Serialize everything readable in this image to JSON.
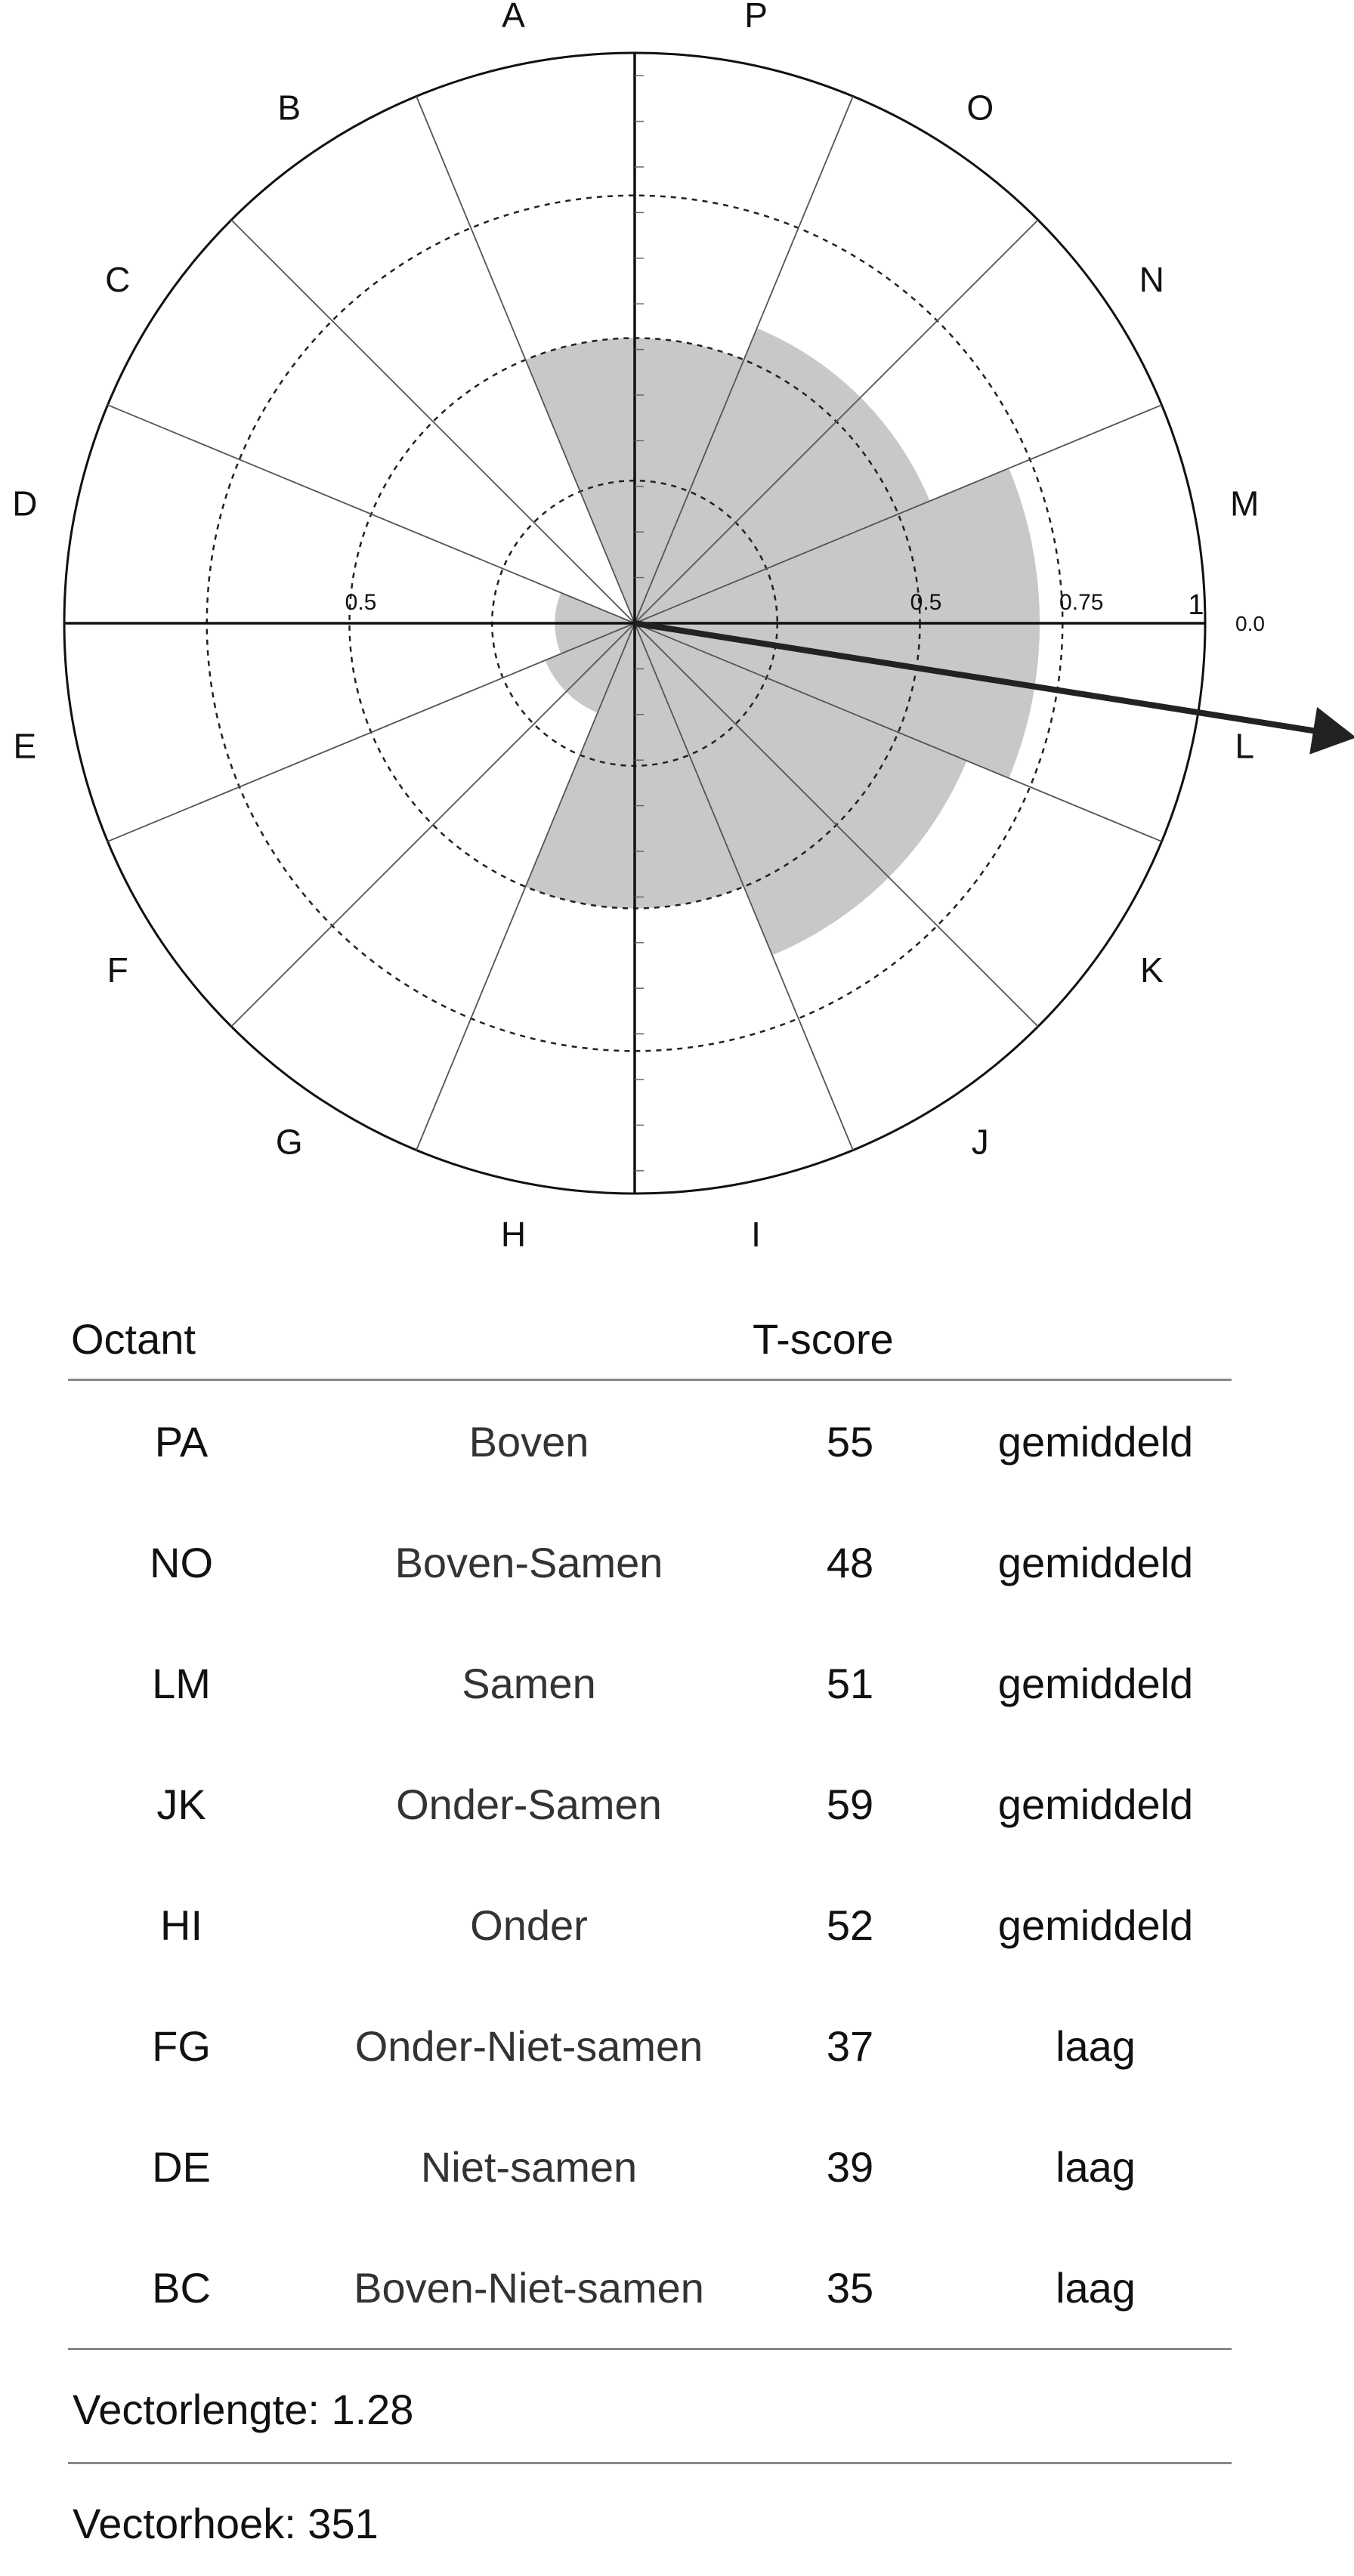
{
  "chart_data": {
    "type": "polar-area",
    "octant_letters": [
      "A",
      "B",
      "C",
      "D",
      "E",
      "F",
      "G",
      "H",
      "I",
      "J",
      "K",
      "L",
      "M",
      "N",
      "O",
      "P"
    ],
    "radial_labels": {
      "left_half": "0.5",
      "right_half": "0.5",
      "right_three_quarter": "0.75",
      "right_full": "1",
      "zero": "0.0"
    },
    "rings": [
      0.25,
      0.5,
      0.75,
      1.0
    ],
    "octant_values": {
      "PA": 0.5,
      "NO": 0.56,
      "LM": 0.71,
      "JK": 0.63,
      "HI": 0.5,
      "FG": 0.17,
      "DE": 0.14,
      "BC": 0.0
    },
    "vector": {
      "length": 1.28,
      "angle": 351
    }
  },
  "table": {
    "header_octant": "Octant",
    "header_tscore": "T-score",
    "rows": [
      {
        "code": "PA",
        "name": "Boven",
        "score": "55",
        "level": "gemiddeld"
      },
      {
        "code": "NO",
        "name": "Boven-Samen",
        "score": "48",
        "level": "gemiddeld"
      },
      {
        "code": "LM",
        "name": "Samen",
        "score": "51",
        "level": "gemiddeld"
      },
      {
        "code": "JK",
        "name": "Onder-Samen",
        "score": "59",
        "level": "gemiddeld"
      },
      {
        "code": "HI",
        "name": "Onder",
        "score": "52",
        "level": "gemiddeld"
      },
      {
        "code": "FG",
        "name": "Onder-Niet-samen",
        "score": "37",
        "level": "laag"
      },
      {
        "code": "DE",
        "name": "Niet-samen",
        "score": "39",
        "level": "laag"
      },
      {
        "code": "BC",
        "name": "Boven-Niet-samen",
        "score": "35",
        "level": "laag"
      }
    ]
  },
  "footer": {
    "vector_length": "Vectorlengte: 1.28",
    "vector_angle": "Vectorhoek: 351"
  },
  "colors": {
    "fill": "#c8c8c8",
    "axis": "#111111",
    "line": "#555555",
    "arrow": "#222222",
    "rule": "#888888"
  }
}
